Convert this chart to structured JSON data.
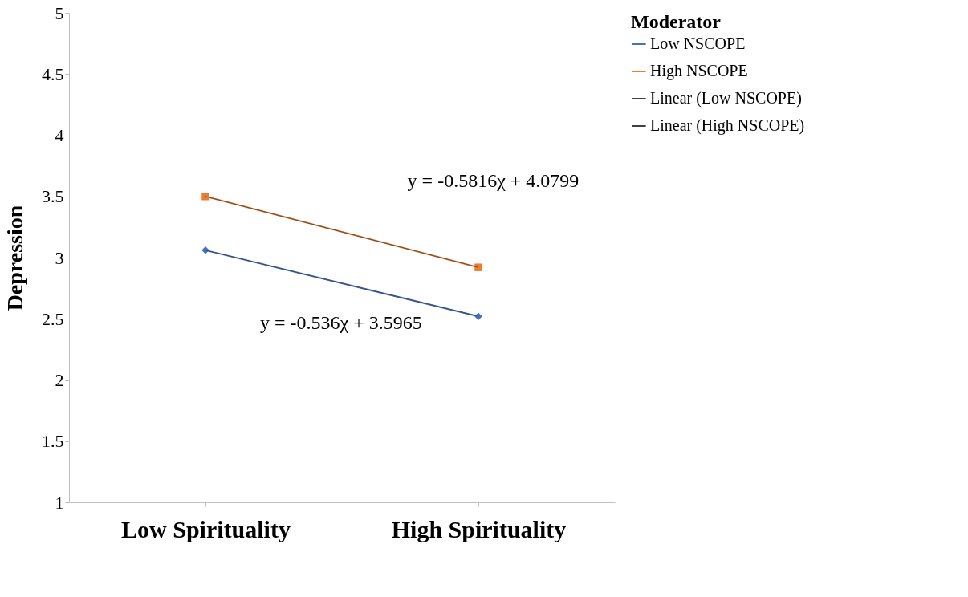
{
  "chart_data": {
    "type": "line",
    "ylabel": "Depression",
    "legend_title": "Moderator",
    "categories": [
      "Low Spirituality",
      "High Spirituality"
    ],
    "series": [
      {
        "name": "Low NSCOPE",
        "color": "#4472c4",
        "values": [
          3.06,
          2.52
        ],
        "marker": "diamond"
      },
      {
        "name": "High NSCOPE",
        "color": "#ed7d31",
        "values": [
          3.5,
          2.92
        ],
        "marker": "square"
      },
      {
        "name": "Linear (Low NSCOPE)",
        "color": "#404040",
        "values": [
          3.06,
          2.52
        ],
        "marker": "none"
      },
      {
        "name": "Linear (High NSCOPE)",
        "color": "#404040",
        "values": [
          3.5,
          2.92
        ],
        "marker": "none"
      }
    ],
    "ylim": [
      1,
      5
    ],
    "yticks": [
      1,
      1.5,
      2,
      2.5,
      3,
      3.5,
      4,
      4.5,
      5
    ],
    "grid": false,
    "legend": "right",
    "annotations": [
      "y = -0.5816χ + 4.0799",
      "y = -0.536χ + 3.5965"
    ]
  }
}
